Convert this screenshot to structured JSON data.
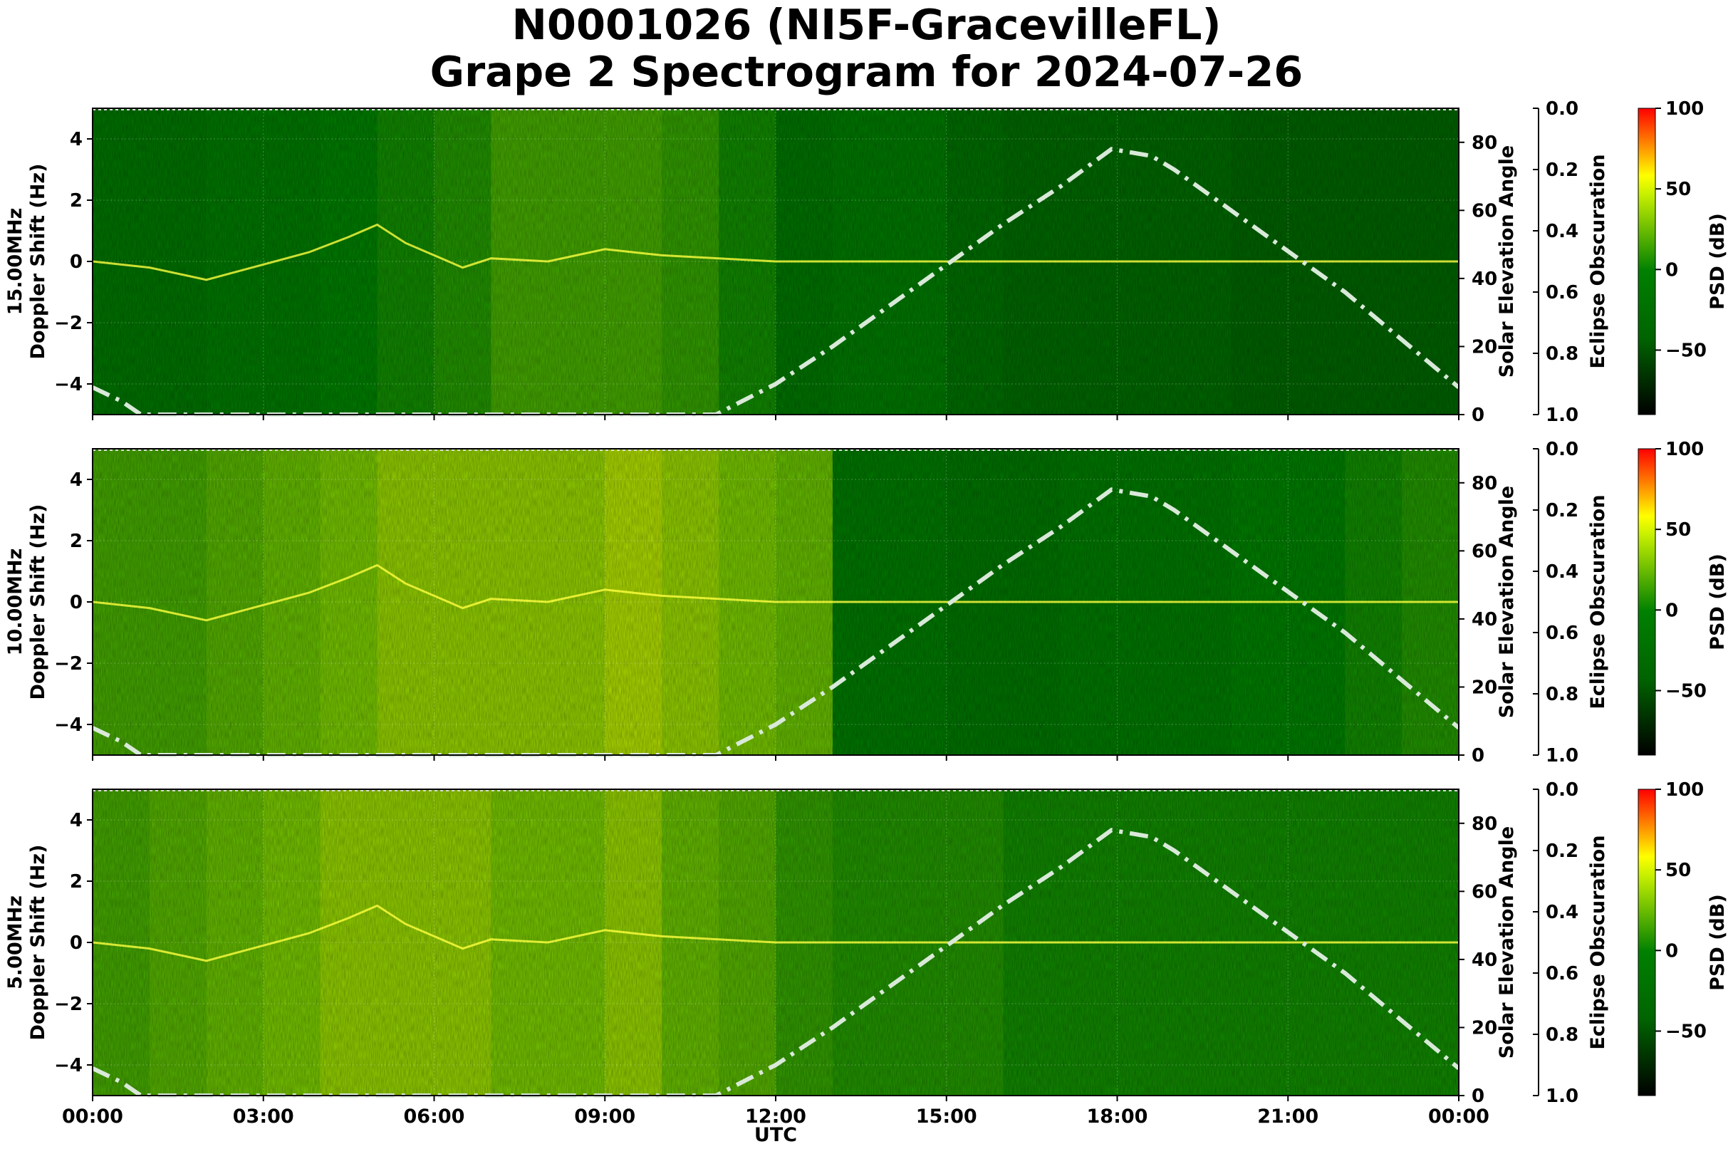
{
  "title": {
    "line1": "N0001026 (NI5F-GracevilleFL)",
    "line2": "Grape 2 Spectrogram for 2024-07-26"
  },
  "colors": {
    "green": "#008000",
    "yellow": "#ffff00",
    "red": "#ff0000",
    "black": "#000000",
    "solar_curve": "#d9e9d9"
  },
  "chart_data": {
    "type": "heatmap",
    "xlabel": "UTC",
    "x_ticks": [
      "00:00",
      "03:00",
      "06:00",
      "09:00",
      "12:00",
      "15:00",
      "18:00",
      "21:00",
      "00:00"
    ],
    "x_range_hours": [
      0,
      24
    ],
    "panels": [
      {
        "frequency_label": "15.00MHz",
        "ylabel": "Doppler Shift (Hz)",
        "ylim": [
          -5,
          5
        ],
        "y_ticks": [
          4,
          2,
          0,
          -2,
          -4
        ],
        "right_axis": {
          "label": "Solar Elevation Angle",
          "ticks": [
            0,
            20,
            40,
            60,
            80
          ],
          "ylim": [
            0,
            90
          ]
        },
        "eclipse_axis": {
          "label": "Eclipse Obscuration",
          "ticks": [
            "0.0",
            "0.2",
            "0.4",
            "0.6",
            "0.8",
            "1.0"
          ]
        },
        "colorbar": {
          "label": "PSD (dB)",
          "ticks": [
            100,
            50,
            0,
            "−50"
          ],
          "range": [
            -90,
            100
          ]
        },
        "intensity": [
          -25,
          -25,
          -20,
          -20,
          -15,
          -10,
          -5,
          5,
          5,
          5,
          0,
          -10,
          -25,
          -20,
          -20,
          -30,
          -35,
          -35,
          -35,
          -35,
          -40,
          -40,
          -40,
          -40
        ]
      },
      {
        "frequency_label": "10.00MHz",
        "ylabel": "Doppler Shift (Hz)",
        "ylim": [
          -5,
          5
        ],
        "y_ticks": [
          4,
          2,
          0,
          -2,
          -4
        ],
        "right_axis": {
          "label": "Solar Elevation Angle",
          "ticks": [
            0,
            20,
            40,
            60,
            80
          ],
          "ylim": [
            0,
            90
          ]
        },
        "eclipse_axis": {
          "label": "Eclipse Obscuration",
          "ticks": [
            "0.0",
            "0.2",
            "0.4",
            "0.6",
            "0.8",
            "1.0"
          ]
        },
        "colorbar": {
          "label": "PSD (dB)",
          "ticks": [
            100,
            50,
            0,
            "−50"
          ],
          "range": [
            -90,
            100
          ]
        },
        "intensity": [
          5,
          5,
          10,
          15,
          20,
          25,
          25,
          25,
          25,
          30,
          25,
          20,
          15,
          -20,
          -20,
          -25,
          -25,
          -20,
          -20,
          -20,
          -15,
          -15,
          -10,
          -5
        ]
      },
      {
        "frequency_label": "5.00MHz",
        "ylabel": "Doppler Shift (Hz)",
        "ylim": [
          -5,
          5
        ],
        "y_ticks": [
          4,
          2,
          0,
          -2,
          -4
        ],
        "right_axis": {
          "label": "Solar Elevation Angle",
          "ticks": [
            0,
            20,
            40,
            60,
            80
          ],
          "ylim": [
            0,
            90
          ]
        },
        "eclipse_axis": {
          "label": "Eclipse Obscuration",
          "ticks": [
            "0.0",
            "0.2",
            "0.4",
            "0.6",
            "0.8",
            "1.0"
          ]
        },
        "colorbar": {
          "label": "PSD (dB)",
          "ticks": [
            100,
            50,
            0,
            "−50"
          ],
          "range": [
            -90,
            100
          ]
        },
        "intensity": [
          5,
          10,
          15,
          20,
          25,
          25,
          25,
          20,
          20,
          25,
          15,
          10,
          0,
          -5,
          -5,
          -5,
          -10,
          -10,
          -10,
          -10,
          -10,
          -10,
          -10,
          -10
        ]
      }
    ],
    "solar_elevation": {
      "x_hours": [
        0,
        0.5,
        0.85,
        10.95,
        12,
        13,
        14,
        15,
        16,
        17,
        17.9,
        18.6,
        19,
        20,
        21,
        22,
        23,
        24
      ],
      "y_degrees": [
        8,
        4,
        0,
        0,
        9,
        20,
        32,
        44,
        56,
        67,
        78,
        76,
        72,
        60,
        48,
        36,
        22,
        8
      ]
    },
    "doppler_trace": {
      "x_hours": [
        0,
        1,
        2,
        3,
        3.8,
        4.5,
        5,
        5.5,
        6,
        6.5,
        7,
        8,
        9,
        10,
        11,
        12,
        14,
        16,
        18,
        20,
        22,
        24
      ],
      "y_hz": [
        0,
        -0.2,
        -0.6,
        -0.1,
        0.3,
        0.8,
        1.2,
        0.6,
        0.2,
        -0.2,
        0.1,
        0.0,
        0.4,
        0.2,
        0.1,
        0.0,
        0.0,
        0.0,
        0.0,
        0.0,
        0.0,
        0.0
      ]
    }
  }
}
